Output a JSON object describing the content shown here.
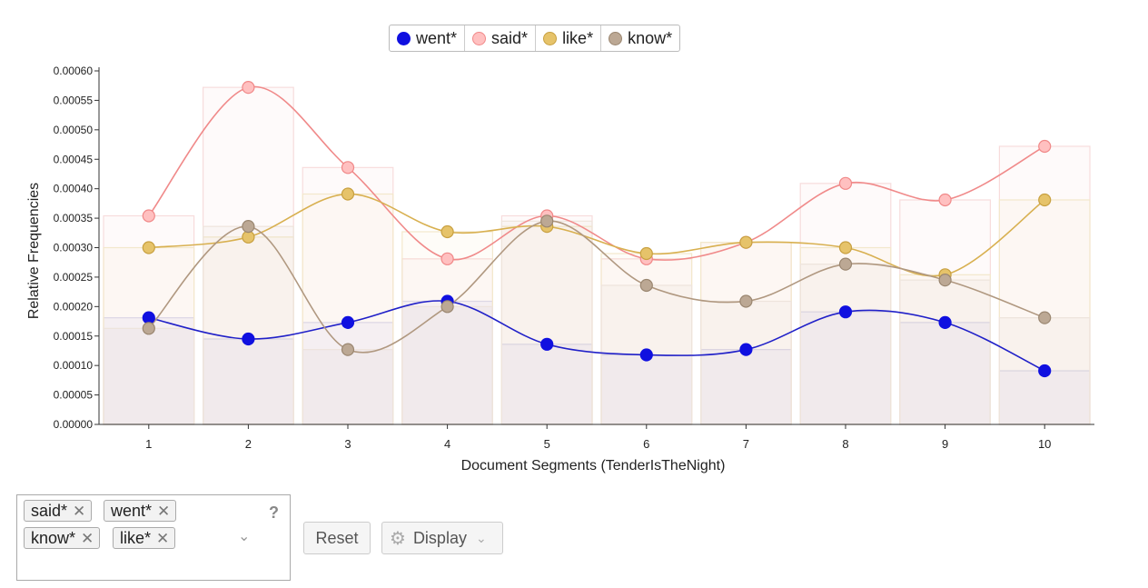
{
  "chart_data": {
    "type": "line",
    "xlabel": "Document Segments (TenderIsTheNight)",
    "ylabel": "Relative Frequencies",
    "ylim": [
      0,
      0.0006
    ],
    "y_ticks": [
      "0.00000",
      "0.00005",
      "0.00010",
      "0.00015",
      "0.00020",
      "0.00025",
      "0.00030",
      "0.00035",
      "0.00040",
      "0.00045",
      "0.00050",
      "0.00055",
      "0.00060"
    ],
    "categories": [
      "1",
      "2",
      "3",
      "4",
      "5",
      "6",
      "7",
      "8",
      "9",
      "10"
    ],
    "series": [
      {
        "name": "went*",
        "color": "#1010e0",
        "values": [
          0.000181,
          0.000145,
          0.000173,
          0.000209,
          0.000136,
          0.000118,
          0.000127,
          0.000191,
          0.000173,
          9.1e-05
        ]
      },
      {
        "name": "said*",
        "color": "#f4a6a6",
        "values": [
          0.000354,
          0.000572,
          0.000436,
          0.000281,
          0.000354,
          0.000281,
          0.000309,
          0.000409,
          0.000381,
          0.000472
        ]
      },
      {
        "name": "like*",
        "color": "#e0c070",
        "values": [
          0.0003,
          0.000318,
          0.000391,
          0.000327,
          0.000336,
          0.00029,
          0.000309,
          0.0003,
          0.000254,
          0.000381
        ]
      },
      {
        "name": "know*",
        "color": "#b8a08a",
        "values": [
          0.000163,
          0.000336,
          0.000127,
          0.0002,
          0.000345,
          0.000236,
          0.000209,
          0.000272,
          0.000245,
          0.000181
        ]
      }
    ]
  },
  "legend": [
    {
      "label": "went*",
      "fill": "#1010e0",
      "stroke": "#1010e0"
    },
    {
      "label": "said*",
      "fill": "#ffc0c0",
      "stroke": "#f08888"
    },
    {
      "label": "like*",
      "fill": "#e6c36a",
      "stroke": "#c8a040"
    },
    {
      "label": "know*",
      "fill": "#bca894",
      "stroke": "#9a8670"
    }
  ],
  "terms": {
    "tags": [
      {
        "label": "said*"
      },
      {
        "label": "went*"
      },
      {
        "label": "know*"
      },
      {
        "label": "like*"
      }
    ],
    "remove_symbol": "✕",
    "help": "?"
  },
  "buttons": {
    "reset": "Reset",
    "display": "Display"
  }
}
